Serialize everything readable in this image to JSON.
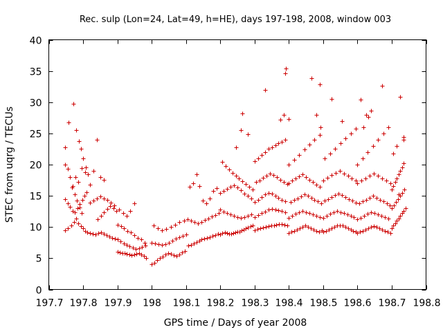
{
  "chart_data": {
    "type": "scatter",
    "title": "Rec. sulp (Lon=24, Lat=49, h=HE), days 197-198, 2008, window 003",
    "xlabel": "GPS time / Days of year 2008",
    "ylabel": "STEC from uqrg / TECUs",
    "xlim": [
      197.7,
      198.8
    ],
    "ylim": [
      0,
      40
    ],
    "xticks": [
      197.7,
      197.8,
      197.9,
      198.0,
      198.1,
      198.2,
      198.3,
      198.4,
      198.5,
      198.6,
      198.7,
      198.8
    ],
    "xtick_labels": [
      "197.7",
      "197.8",
      "197.9",
      "198",
      "198.1",
      "198.2",
      "198.3",
      "198.4",
      "198.5",
      "198.6",
      "198.7",
      "198.8"
    ],
    "yticks": [
      0,
      5,
      10,
      15,
      20,
      25,
      30,
      35,
      40
    ],
    "ytick_labels": [
      "0",
      "5",
      "10",
      "15",
      "20",
      "25",
      "30",
      "35",
      "40"
    ],
    "marker": "plus",
    "color": "#cc0000",
    "grid": false,
    "series": [
      {
        "name": "STEC",
        "x": [
          197.748,
          197.756,
          197.766,
          197.773,
          197.779,
          197.786,
          197.793,
          197.799,
          197.806,
          197.813,
          197.748,
          197.756,
          197.762,
          197.769,
          197.776,
          197.783,
          197.79,
          197.797,
          197.803,
          197.81,
          197.748,
          197.755,
          197.762,
          197.769,
          197.776,
          197.782,
          197.789,
          197.796,
          197.772,
          197.78,
          197.787,
          197.793,
          197.8,
          197.808,
          197.815,
          197.748,
          197.758,
          197.768,
          197.777,
          197.786,
          197.796,
          197.806,
          197.82,
          197.828,
          197.836,
          197.844,
          197.852,
          197.86,
          197.868,
          197.876,
          197.884,
          197.892,
          197.82,
          197.83,
          197.84,
          197.85,
          197.86,
          197.87,
          197.88,
          197.89,
          197.843,
          197.852,
          197.861,
          197.87,
          197.879,
          197.888,
          197.896,
          197.82,
          197.83,
          197.84,
          197.85,
          197.86,
          197.9,
          197.907,
          197.914,
          197.921,
          197.928,
          197.935,
          197.942,
          197.949,
          197.956,
          197.963,
          197.97,
          197.977,
          197.984,
          197.9,
          197.909,
          197.918,
          197.927,
          197.936,
          197.945,
          197.954,
          197.963,
          197.972,
          197.981,
          197.9,
          197.91,
          197.92,
          197.93,
          197.94,
          197.95,
          197.96,
          197.97,
          197.98,
          197.905,
          197.916,
          197.927,
          197.938,
          197.949,
          198.0,
          198.008,
          198.016,
          198.024,
          198.032,
          198.04,
          198.048,
          198.056,
          198.064,
          198.072,
          198.08,
          198.088,
          198.096,
          198.0,
          198.01,
          198.02,
          198.03,
          198.04,
          198.05,
          198.06,
          198.07,
          198.08,
          198.09,
          198.1,
          198.005,
          198.018,
          198.03,
          198.043,
          198.056,
          198.069,
          198.081,
          198.094,
          198.106,
          198.114,
          198.122,
          198.13,
          198.138,
          198.146,
          198.154,
          198.162,
          198.17,
          198.178,
          198.186,
          198.194,
          198.105,
          198.115,
          198.125,
          198.135,
          198.145,
          198.155,
          198.165,
          198.175,
          198.185,
          198.195,
          198.11,
          198.12,
          198.13,
          198.14,
          198.15,
          198.16,
          198.17,
          198.18,
          198.19,
          198.2,
          198.206,
          198.213,
          198.219,
          198.225,
          198.231,
          198.238,
          198.244,
          198.25,
          198.256,
          198.262,
          198.269,
          198.275,
          198.281,
          198.288,
          198.294,
          198.2,
          198.21,
          198.22,
          198.23,
          198.24,
          198.25,
          198.26,
          198.27,
          198.28,
          198.29,
          198.2,
          198.21,
          198.22,
          198.23,
          198.24,
          198.25,
          198.26,
          198.27,
          198.28,
          198.29,
          198.205,
          198.215,
          198.225,
          198.235,
          198.245,
          198.255,
          198.265,
          198.275,
          198.285,
          198.295,
          198.245,
          198.26,
          198.264,
          198.28,
          198.3,
          198.308,
          198.316,
          198.324,
          198.332,
          198.34,
          198.348,
          198.356,
          198.364,
          198.372,
          198.38,
          198.388,
          198.396,
          198.3,
          198.31,
          198.32,
          198.33,
          198.34,
          198.35,
          198.36,
          198.37,
          198.38,
          198.39,
          198.3,
          198.31,
          198.32,
          198.33,
          198.34,
          198.35,
          198.36,
          198.37,
          198.38,
          198.39,
          198.305,
          198.315,
          198.325,
          198.335,
          198.345,
          198.355,
          198.365,
          198.375,
          198.385,
          198.395,
          198.3,
          198.31,
          198.32,
          198.33,
          198.34,
          198.35,
          198.36,
          198.37,
          198.38,
          198.39,
          198.33,
          198.39,
          198.392,
          198.385,
          198.375,
          198.4,
          198.408,
          198.416,
          198.424,
          198.432,
          198.44,
          198.448,
          198.456,
          198.464,
          198.472,
          198.48,
          198.488,
          198.496,
          198.4,
          198.41,
          198.42,
          198.43,
          198.44,
          198.45,
          198.46,
          198.47,
          198.48,
          198.49,
          198.405,
          198.415,
          198.425,
          198.435,
          198.445,
          198.455,
          198.465,
          198.475,
          198.485,
          198.495,
          198.4,
          198.41,
          198.42,
          198.43,
          198.44,
          198.45,
          198.46,
          198.47,
          198.48,
          198.49,
          198.4,
          198.415,
          198.43,
          198.445,
          198.46,
          198.475,
          198.49,
          198.465,
          198.48,
          198.49,
          198.492,
          198.4,
          198.5,
          198.508,
          198.516,
          198.524,
          198.532,
          198.54,
          198.548,
          198.556,
          198.564,
          198.572,
          198.58,
          198.588,
          198.596,
          198.5,
          198.51,
          198.52,
          198.53,
          198.54,
          198.55,
          198.56,
          198.57,
          198.58,
          198.59,
          198.505,
          198.515,
          198.525,
          198.535,
          198.545,
          198.555,
          198.565,
          198.575,
          198.585,
          198.595,
          198.5,
          198.512,
          198.524,
          198.536,
          198.548,
          198.56,
          198.572,
          198.584,
          198.596,
          198.505,
          198.52,
          198.535,
          198.55,
          198.565,
          198.58,
          198.595,
          198.525,
          198.555,
          198.6,
          198.608,
          198.616,
          198.624,
          198.632,
          198.64,
          198.648,
          198.656,
          198.664,
          198.672,
          198.68,
          198.688,
          198.696,
          198.6,
          198.61,
          198.62,
          198.63,
          198.64,
          198.65,
          198.66,
          198.67,
          198.68,
          198.69,
          198.605,
          198.615,
          198.625,
          198.635,
          198.645,
          198.655,
          198.665,
          198.675,
          198.685,
          198.695,
          198.6,
          198.612,
          198.624,
          198.636,
          198.648,
          198.66,
          198.672,
          198.684,
          198.696,
          198.6,
          198.615,
          198.63,
          198.645,
          198.66,
          198.675,
          198.69,
          198.61,
          198.618,
          198.625,
          198.632,
          198.64,
          198.672,
          198.7,
          198.705,
          198.71,
          198.715,
          198.72,
          198.725,
          198.73,
          198.735,
          198.74,
          198.7,
          198.706,
          198.712,
          198.718,
          198.724,
          198.73,
          198.736,
          198.7,
          198.705,
          198.71,
          198.715,
          198.72,
          198.725,
          198.73,
          198.735,
          198.705,
          198.715,
          198.725,
          198.735,
          198.735,
          198.725,
          198.72
        ],
        "y": [
          9.5,
          9.8,
          10.2,
          10.8,
          11.4,
          10.6,
          10.1,
          9.8,
          9.4,
          9.1,
          14.5,
          13.8,
          13.2,
          12.6,
          12.3,
          13.0,
          13.7,
          14.3,
          15.0,
          15.6,
          20.0,
          19.3,
          18.0,
          16.6,
          15.2,
          14.2,
          13.1,
          12.2,
          29.8,
          25.5,
          23.8,
          22.5,
          21.0,
          19.6,
          18.4,
          22.8,
          26.8,
          16.3,
          18.0,
          17.2,
          19.5,
          18.8,
          9.0,
          8.9,
          8.8,
          9.0,
          9.1,
          8.9,
          8.7,
          8.5,
          8.3,
          8.1,
          13.9,
          14.2,
          14.6,
          14.9,
          14.6,
          14.3,
          13.9,
          13.5,
          11.3,
          11.8,
          12.3,
          12.9,
          13.4,
          13.0,
          12.6,
          16.8,
          19.0,
          24.0,
          18.0,
          17.6,
          6.0,
          5.9,
          5.8,
          5.8,
          5.7,
          5.6,
          5.5,
          5.6,
          5.7,
          5.8,
          5.6,
          5.4,
          5.0,
          8.0,
          7.7,
          7.4,
          7.2,
          6.9,
          6.7,
          6.5,
          6.6,
          6.8,
          7.0,
          10.4,
          10.1,
          9.8,
          9.4,
          9.1,
          8.7,
          8.3,
          8.0,
          7.5,
          12.8,
          12.2,
          11.8,
          12.6,
          13.8,
          4.0,
          4.3,
          4.7,
          5.0,
          5.3,
          5.6,
          5.8,
          5.7,
          5.5,
          5.4,
          5.6,
          5.9,
          6.2,
          7.5,
          7.4,
          7.3,
          7.2,
          7.3,
          7.5,
          7.8,
          8.1,
          8.4,
          8.6,
          8.8,
          10.2,
          9.8,
          9.5,
          9.7,
          10.0,
          10.4,
          10.8,
          11.0,
          7.0,
          7.2,
          7.4,
          7.6,
          7.8,
          8.0,
          8.1,
          8.3,
          8.4,
          8.6,
          8.7,
          8.9,
          11.2,
          11.0,
          10.8,
          10.6,
          10.8,
          11.1,
          11.4,
          11.7,
          11.9,
          12.2,
          16.5,
          17.0,
          18.4,
          16.6,
          14.2,
          13.8,
          14.6,
          15.8,
          16.2,
          8.8,
          9.0,
          9.1,
          9.0,
          8.9,
          8.9,
          9.0,
          9.1,
          9.2,
          9.3,
          9.5,
          9.6,
          9.8,
          9.9,
          10.1,
          10.2,
          12.8,
          12.5,
          12.2,
          12.0,
          11.8,
          11.6,
          11.5,
          11.6,
          11.8,
          12.0,
          15.5,
          15.8,
          16.1,
          16.4,
          16.7,
          16.3,
          15.9,
          15.4,
          15.0,
          14.6,
          20.4,
          19.8,
          19.2,
          18.7,
          18.2,
          17.8,
          17.3,
          16.9,
          16.5,
          16.0,
          22.8,
          25.5,
          28.2,
          24.9,
          9.5,
          9.7,
          9.8,
          9.9,
          10.0,
          10.1,
          10.2,
          10.3,
          10.4,
          10.5,
          10.5,
          10.4,
          10.3,
          11.6,
          11.9,
          12.2,
          12.5,
          12.8,
          12.9,
          12.8,
          12.7,
          12.6,
          12.4,
          14.0,
          14.4,
          14.8,
          15.2,
          15.5,
          15.3,
          15.0,
          14.7,
          14.4,
          14.1,
          17.2,
          17.5,
          17.9,
          18.2,
          18.6,
          18.3,
          18.0,
          17.6,
          17.2,
          16.9,
          20.5,
          21.0,
          21.5,
          22.0,
          22.5,
          22.8,
          23.1,
          23.4,
          23.7,
          24.0,
          32.0,
          34.6,
          35.4,
          28.0,
          27.2,
          9.0,
          9.2,
          9.4,
          9.6,
          9.8,
          10.0,
          10.2,
          10.0,
          9.8,
          9.6,
          9.4,
          9.3,
          9.5,
          11.5,
          11.8,
          12.1,
          12.4,
          12.6,
          12.4,
          12.2,
          12.0,
          11.8,
          11.6,
          14.0,
          14.3,
          14.6,
          14.9,
          15.2,
          15.0,
          14.7,
          14.4,
          14.1,
          13.8,
          17.0,
          17.4,
          17.8,
          18.1,
          18.4,
          18.0,
          17.6,
          17.2,
          16.8,
          16.4,
          20.0,
          20.8,
          21.6,
          22.4,
          23.2,
          24.0,
          24.8,
          33.8,
          28.0,
          32.8,
          26.0,
          27.3,
          9.2,
          9.4,
          9.6,
          9.8,
          10.0,
          10.2,
          10.3,
          10.2,
          10.0,
          9.8,
          9.6,
          9.4,
          9.2,
          11.5,
          11.8,
          12.1,
          12.4,
          12.6,
          12.4,
          12.2,
          12.0,
          11.8,
          11.6,
          14.2,
          14.5,
          14.8,
          15.1,
          15.4,
          15.1,
          14.8,
          14.5,
          14.2,
          13.9,
          17.5,
          17.9,
          18.3,
          18.7,
          19.0,
          18.6,
          18.2,
          17.8,
          17.4,
          21.0,
          21.8,
          22.6,
          23.4,
          24.2,
          25.0,
          25.8,
          30.5,
          27.0,
          9.0,
          9.2,
          9.4,
          9.6,
          9.8,
          10.0,
          10.1,
          10.0,
          9.8,
          9.6,
          9.4,
          9.2,
          9.0,
          11.2,
          11.5,
          11.8,
          12.1,
          12.4,
          12.2,
          12.0,
          11.8,
          11.6,
          11.4,
          13.8,
          14.1,
          14.4,
          14.7,
          15.0,
          14.7,
          14.4,
          14.1,
          13.8,
          13.5,
          17.0,
          17.4,
          17.8,
          18.2,
          18.6,
          18.2,
          17.8,
          17.4,
          17.0,
          20.0,
          21.0,
          22.0,
          23.0,
          24.0,
          25.0,
          26.0,
          30.4,
          26.0,
          28.0,
          27.6,
          28.6,
          32.6,
          9.8,
          10.2,
          10.6,
          11.0,
          11.4,
          11.8,
          12.2,
          12.6,
          13.0,
          13.0,
          13.5,
          14.0,
          14.5,
          15.0,
          15.5,
          16.0,
          16.0,
          16.6,
          17.2,
          17.8,
          18.4,
          19.0,
          19.6,
          20.2,
          21.8,
          23.0,
          19.0,
          24.4,
          24.0,
          30.9,
          15.2
        ]
      }
    ]
  }
}
